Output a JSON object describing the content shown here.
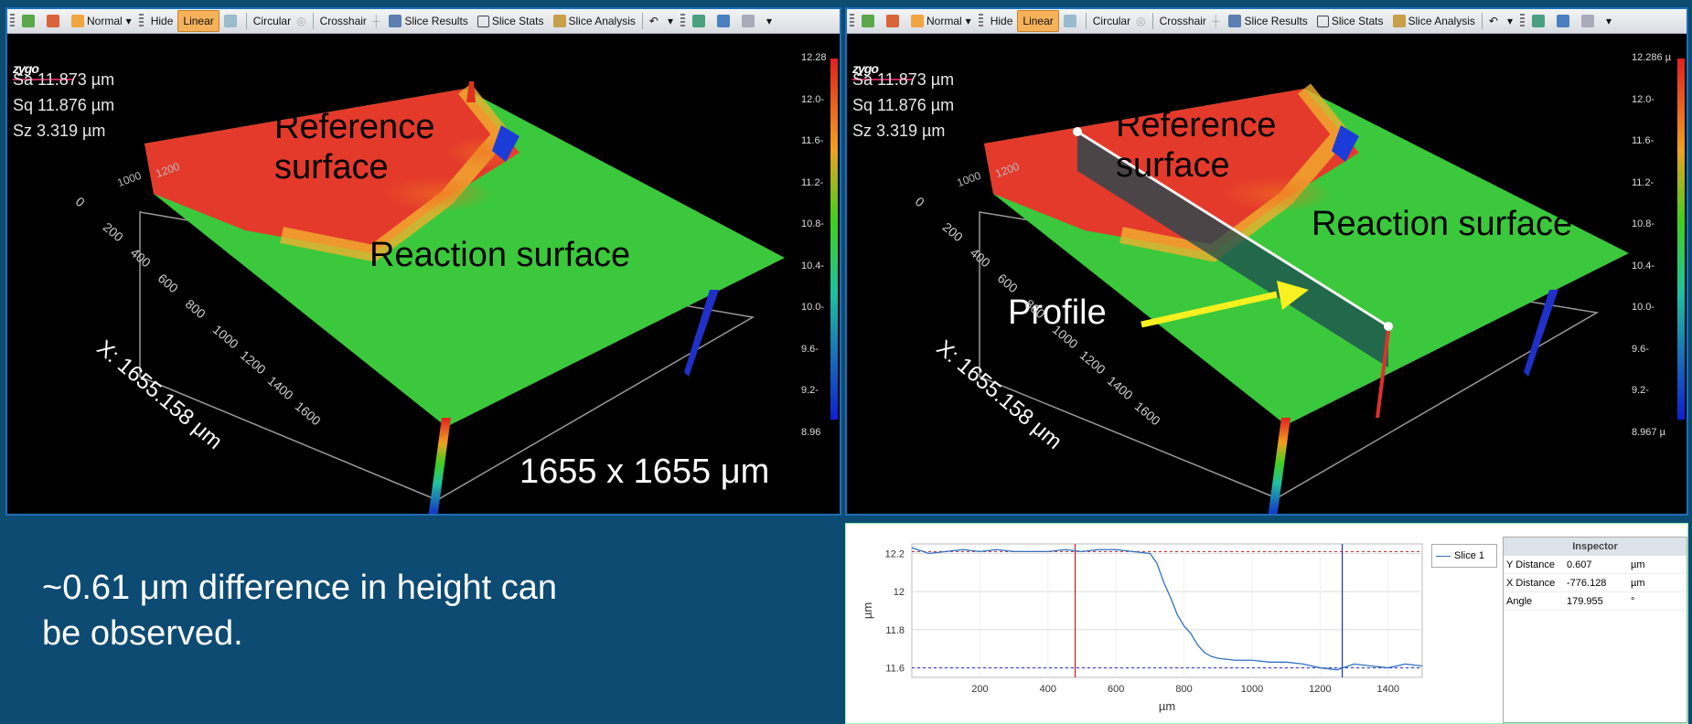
{
  "toolbar": {
    "mode": "Normal",
    "hide": "Hide",
    "linear": "Linear",
    "circular": "Circular",
    "crosshair": "Crosshair",
    "slice_results": "Slice Results",
    "slice_stats": "Slice Stats",
    "slice_analysis": "Slice Analysis"
  },
  "logo": "zygo",
  "stats": {
    "sa": "Sa 11.873 µm",
    "sq": "Sq 11.876 µm",
    "sz": "Sz 3.319  µm"
  },
  "left": {
    "scale_ticks": [
      "12.28",
      "12.0-",
      "11.6-",
      "11.2-",
      "10.8-",
      "10.4-",
      "10.0-",
      "9.6-",
      "9.2-",
      "8.96"
    ],
    "ref_label_1": "Reference",
    "ref_label_2": "surface",
    "reaction_label": "Reaction surface",
    "dims": "1655 x 1655 μm",
    "x_axis": "X: 1655.158 μm",
    "x_ticks": [
      "0",
      "200",
      "400",
      "600",
      "800",
      "1000",
      "1200",
      "1400",
      "1600"
    ],
    "y_ticks": [
      "1000",
      "1200"
    ]
  },
  "right": {
    "scale_ticks": [
      "12.286 µ",
      "12.0-",
      "11.6-",
      "11.2-",
      "10.8-",
      "10.4-",
      "10.0-",
      "9.6-",
      "9.2-",
      "8.967 µ"
    ],
    "ref_label_1": "Reference",
    "ref_label_2": "surface",
    "reaction_label": "Reaction surface",
    "profile_label": "Profile",
    "x_axis": "X: 1655.158 μm",
    "x_ticks": [
      "0",
      "200",
      "400",
      "600",
      "800",
      "1000",
      "1200",
      "1400",
      "1600"
    ],
    "y_ticks": [
      "1000",
      "1200"
    ]
  },
  "caption": {
    "line1": "~0.61 μm difference in height can",
    "line2": "be observed."
  },
  "chart_data": {
    "type": "line",
    "xlabel": "µm",
    "ylabel": "µm",
    "xlim": [
      0,
      1500
    ],
    "ylim": [
      11.55,
      12.25
    ],
    "x_ticks": [
      "200",
      "400",
      "600",
      "800",
      "1000",
      "1200",
      "1400"
    ],
    "y_ticks": [
      "11.6",
      "11.8",
      "12",
      "12.2"
    ],
    "series": [
      {
        "name": "Slice 1",
        "x": [
          0,
          50,
          100,
          150,
          200,
          250,
          300,
          350,
          400,
          450,
          500,
          550,
          600,
          650,
          700,
          720,
          740,
          760,
          780,
          800,
          820,
          840,
          860,
          880,
          900,
          950,
          1000,
          1050,
          1100,
          1150,
          1200,
          1250,
          1300,
          1350,
          1400,
          1450,
          1500
        ],
        "y": [
          12.23,
          12.2,
          12.21,
          12.22,
          12.21,
          12.22,
          12.21,
          12.21,
          12.21,
          12.22,
          12.21,
          12.22,
          12.22,
          12.21,
          12.2,
          12.15,
          12.05,
          11.97,
          11.88,
          11.82,
          11.78,
          11.72,
          11.68,
          11.66,
          11.65,
          11.64,
          11.64,
          11.63,
          11.63,
          11.62,
          11.6,
          11.59,
          11.62,
          11.61,
          11.6,
          11.62,
          11.61
        ]
      }
    ],
    "ref_lines": {
      "upper": 12.21,
      "lower": 11.6
    },
    "cursors_x": [
      480,
      1265
    ]
  },
  "inspector": {
    "title": "Inspector",
    "rows": [
      {
        "label": "Y Distance",
        "value": "0.607",
        "unit": "µm"
      },
      {
        "label": "X Distance",
        "value": "-776.128",
        "unit": "µm"
      },
      {
        "label": "Angle",
        "value": "179.955",
        "unit": "°"
      }
    ]
  }
}
